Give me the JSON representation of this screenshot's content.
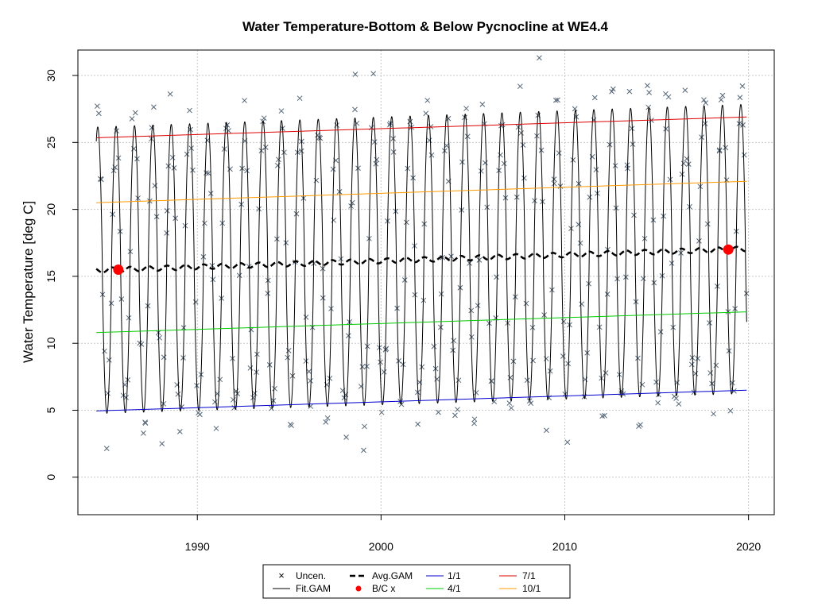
{
  "chart_data": {
    "type": "line",
    "title": "Water Temperature-Bottom & Below Pycnocline at WE4.4",
    "xlabel": "",
    "ylabel": "Water Temperature [deg C]",
    "xlim": [
      1983.5,
      2021.4
    ],
    "ylim": [
      -2.8,
      31.9
    ],
    "x_ticks": [
      1990,
      2000,
      2010,
      2020
    ],
    "y_ticks": [
      0,
      5,
      10,
      15,
      20,
      25,
      30
    ],
    "grid": true,
    "legend_position": "bottom",
    "legend": [
      "Uncen.",
      "Fit.GAM",
      "1/1",
      "4/1",
      "7/1",
      "10/1",
      "Avg.GAM",
      "B/C x"
    ],
    "series": [
      {
        "name": "1/1",
        "color": "#0000cc",
        "x": [
          1984.5,
          2019.9
        ],
        "y": [
          4.95,
          6.5
        ]
      },
      {
        "name": "4/1",
        "color": "#00cc00",
        "x": [
          1984.5,
          2019.9
        ],
        "y": [
          10.8,
          12.35
        ]
      },
      {
        "name": "7/1",
        "color": "#dd0000",
        "x": [
          1984.5,
          2019.9
        ],
        "y": [
          25.35,
          26.9
        ]
      },
      {
        "name": "10/1",
        "color": "#ff9900",
        "x": [
          1984.5,
          2019.9
        ],
        "y": [
          20.5,
          22.1
        ]
      },
      {
        "name": "Avg.GAM",
        "color": "#000000",
        "x": [
          1984.5,
          2019.9
        ],
        "y": [
          15.45,
          17.05
        ]
      }
    ],
    "fit_gam": {
      "name": "Fit.GAM",
      "start": 1984.5,
      "end": 2019.9,
      "mean_start": 15.45,
      "mean_end": 17.05,
      "amplitude_start": 10.7,
      "amplitude_end": 10.8,
      "peak_phase": 0.58
    },
    "bc_points": {
      "name": "B/C x",
      "color": "#ff0000",
      "x": [
        1985.7,
        2018.9
      ],
      "y": [
        15.5,
        17.0
      ]
    },
    "uncensored_observations": {
      "name": "Uncen.",
      "color": "#556677",
      "start": 1984.5,
      "end": 2019.9,
      "samples_per_year": 12,
      "noise": 1.6
    }
  }
}
